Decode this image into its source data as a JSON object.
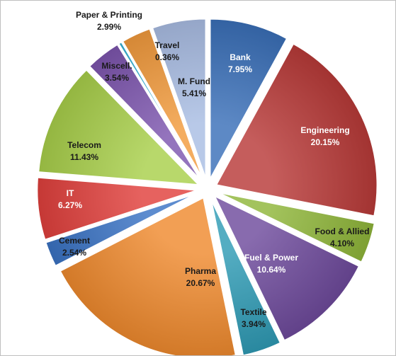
{
  "chart_data": {
    "type": "pie",
    "exploded": true,
    "start_angle_deg": 0,
    "direction": "clockwise",
    "slices": [
      {
        "label": "Bank",
        "pct_text": "7.95%",
        "value": 7.95,
        "color": "#3a6fb8"
      },
      {
        "label": "Engineering",
        "pct_text": "20.15%",
        "value": 20.15,
        "color": "#b83a38"
      },
      {
        "label": "Food & Allied",
        "pct_text": "4.10%",
        "value": 4.1,
        "color": "#8fb63a"
      },
      {
        "label": "Fuel & Power",
        "pct_text": "10.64%",
        "value": 10.64,
        "color": "#6e4a9c"
      },
      {
        "label": "Textile",
        "pct_text": "3.94%",
        "value": 3.94,
        "color": "#2f9bb5"
      },
      {
        "label": "Pharma",
        "pct_text": "20.67%",
        "value": 20.67,
        "color": "#ef8a2e"
      },
      {
        "label": "Cement",
        "pct_text": "2.54%",
        "value": 2.54,
        "color": "#3a73c4"
      },
      {
        "label": "IT",
        "pct_text": "6.27%",
        "value": 6.27,
        "color": "#e0403c"
      },
      {
        "label": "Telecom",
        "pct_text": "11.43%",
        "value": 11.43,
        "color": "#a8cf4a"
      },
      {
        "label": "Miscell.",
        "pct_text": "3.54%",
        "value": 3.54,
        "color": "#7d55ae"
      },
      {
        "label": "Travel",
        "pct_text": "0.36%",
        "value": 0.36,
        "color": "#38b5d8"
      },
      {
        "label": "Paper & Printing",
        "pct_text": "2.99%",
        "value": 2.99,
        "color": "#f29b3d"
      },
      {
        "label": "M. Fund",
        "pct_text": "5.41%",
        "value": 5.41,
        "color": "#a9bde3"
      }
    ]
  }
}
